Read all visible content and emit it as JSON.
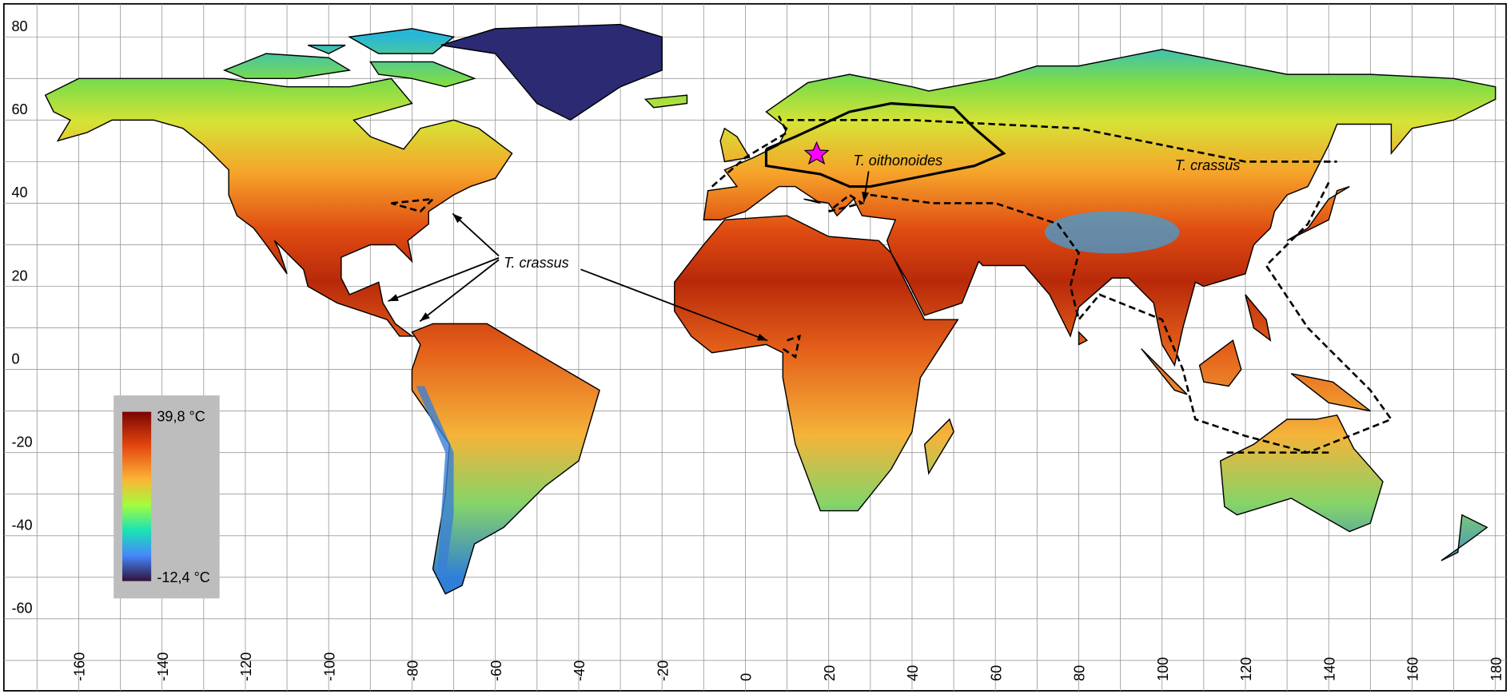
{
  "map": {
    "x_axis": {
      "ticks": [
        -160,
        -140,
        -120,
        -100,
        -80,
        -60,
        -40,
        -20,
        0,
        20,
        40,
        60,
        80,
        100,
        120,
        140,
        160,
        180
      ]
    },
    "y_axis": {
      "ticks": [
        80,
        60,
        40,
        20,
        0,
        -20,
        -40,
        -60
      ]
    },
    "legend": {
      "max_label": "39,8 °C",
      "min_label": "-12,4 °C"
    },
    "annotations": [
      {
        "text": "T. crassus"
      },
      {
        "text": "T. oithonoides"
      },
      {
        "text": "T. crassus"
      }
    ]
  }
}
